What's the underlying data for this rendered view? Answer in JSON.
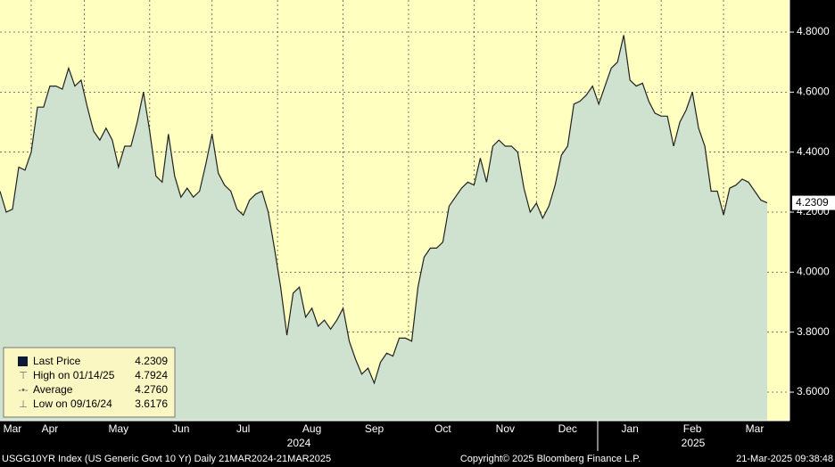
{
  "chart_data": {
    "type": "area",
    "series": [
      {
        "name": "Last Price",
        "color": "#222222",
        "fill": "#cfe2cf",
        "values": [
          4.27,
          4.2,
          4.21,
          4.35,
          4.34,
          4.4,
          4.55,
          4.55,
          4.62,
          4.62,
          4.61,
          4.68,
          4.62,
          4.64,
          4.55,
          4.47,
          4.44,
          4.48,
          4.44,
          4.35,
          4.42,
          4.42,
          4.5,
          4.6,
          4.47,
          4.32,
          4.3,
          4.46,
          4.32,
          4.25,
          4.28,
          4.25,
          4.27,
          4.36,
          4.46,
          4.33,
          4.29,
          4.27,
          4.21,
          4.19,
          4.24,
          4.26,
          4.27,
          4.2,
          4.08,
          3.95,
          3.79,
          3.93,
          3.95,
          3.85,
          3.88,
          3.82,
          3.84,
          3.81,
          3.84,
          3.88,
          3.77,
          3.71,
          3.66,
          3.68,
          3.63,
          3.7,
          3.73,
          3.72,
          3.78,
          3.78,
          3.77,
          3.95,
          4.05,
          4.08,
          4.08,
          4.1,
          4.22,
          4.25,
          4.28,
          4.3,
          4.29,
          4.38,
          4.3,
          4.42,
          4.44,
          4.42,
          4.42,
          4.4,
          4.28,
          4.2,
          4.23,
          4.18,
          4.22,
          4.29,
          4.39,
          4.42,
          4.56,
          4.57,
          4.59,
          4.62,
          4.56,
          4.62,
          4.68,
          4.7,
          4.79,
          4.64,
          4.62,
          4.63,
          4.57,
          4.53,
          4.52,
          4.52,
          4.42,
          4.5,
          4.54,
          4.6,
          4.48,
          4.42,
          4.27,
          4.27,
          4.19,
          4.28,
          4.29,
          4.31,
          4.3,
          4.27,
          4.24,
          4.2309
        ]
      }
    ],
    "categories": [
      null,
      null,
      "Mar",
      null,
      null,
      null,
      null,
      null,
      "Apr",
      null,
      null,
      null,
      null,
      null,
      null,
      null,
      null,
      null,
      null,
      "May",
      null,
      null,
      null,
      null,
      null,
      null,
      null,
      null,
      null,
      "Jun",
      null,
      null,
      null,
      null,
      null,
      null,
      null,
      null,
      null,
      "Jul",
      null,
      null,
      null,
      null,
      null,
      null,
      null,
      null,
      null,
      null,
      "Aug",
      null,
      null,
      null,
      null,
      null,
      null,
      null,
      null,
      null,
      "Sep",
      null,
      null,
      null,
      null,
      null,
      null,
      null,
      null,
      null,
      null,
      "Oct",
      null,
      null,
      null,
      null,
      null,
      null,
      null,
      null,
      null,
      "Nov",
      null,
      null,
      null,
      null,
      null,
      null,
      null,
      null,
      null,
      "Dec",
      null,
      null,
      null,
      null,
      null,
      null,
      null,
      null,
      null,
      "Jan",
      null,
      null,
      null,
      null,
      null,
      null,
      null,
      null,
      null,
      "Feb",
      null,
      null,
      null,
      null,
      null,
      null,
      null,
      null,
      null,
      "Mar",
      null,
      null
    ],
    "years": [
      "2024",
      "2025"
    ],
    "ylim": [
      3.505,
      4.907
    ],
    "yticks": [
      {
        "value": 3.6,
        "label": "3.6000"
      },
      {
        "value": 3.8,
        "label": "3.8000"
      },
      {
        "value": 4.0,
        "label": "4.0000"
      },
      {
        "value": 4.2,
        "label": "4.2000"
      },
      {
        "value": 4.4,
        "label": "4.4000"
      },
      {
        "value": 4.6,
        "label": "4.6000"
      },
      {
        "value": 4.8,
        "label": "4.8000"
      }
    ],
    "grid": true,
    "background": "#ffffc0",
    "stats": {
      "labels": [
        "Last Price",
        "High on 01/14/25",
        "Average",
        "Low on 09/16/24"
      ],
      "values": [
        4.2309,
        4.7924,
        4.276,
        3.6176
      ],
      "value_labels": [
        "4.2309",
        "4.7924",
        "4.2760",
        "3.6176"
      ]
    },
    "footer": {
      "left": "USGG10YR Index (US Generic Govt 10 Yr)  Daily 21MAR2024-21MAR2025",
      "center": "Copyright© 2025 Bloomberg Finance L.P.",
      "right": "21-Mar-2025 09:38:48"
    }
  }
}
